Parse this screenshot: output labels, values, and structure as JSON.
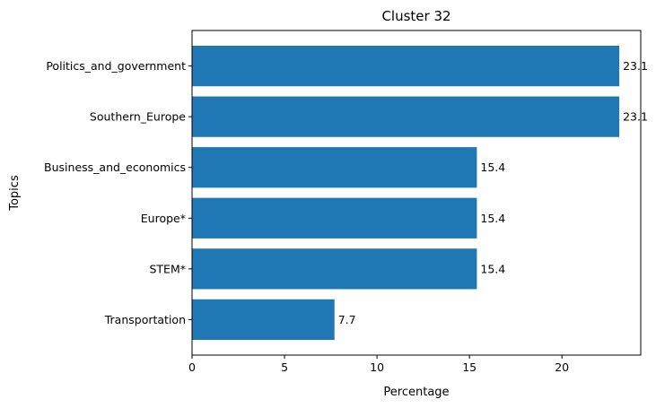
{
  "chart_data": {
    "type": "bar",
    "orientation": "horizontal",
    "title": "Cluster 32",
    "xlabel": "Percentage",
    "ylabel": "Topics",
    "categories": [
      "Politics_and_government",
      "Southern_Europe",
      "Business_and_economics",
      "Europe*",
      "STEM*",
      "Transportation"
    ],
    "values": [
      23.1,
      23.1,
      15.4,
      15.4,
      15.4,
      7.7
    ],
    "data_labels": [
      "23.1",
      "23.1",
      "15.4",
      "15.4",
      "15.4",
      "7.7"
    ],
    "xlim": [
      0,
      24.26
    ],
    "xticks": [
      0,
      5,
      10,
      15,
      20
    ],
    "xtick_labels": [
      "0",
      "5",
      "10",
      "15",
      "20"
    ],
    "bar_color": "#1f77b4",
    "grid": false,
    "legend": "none"
  }
}
